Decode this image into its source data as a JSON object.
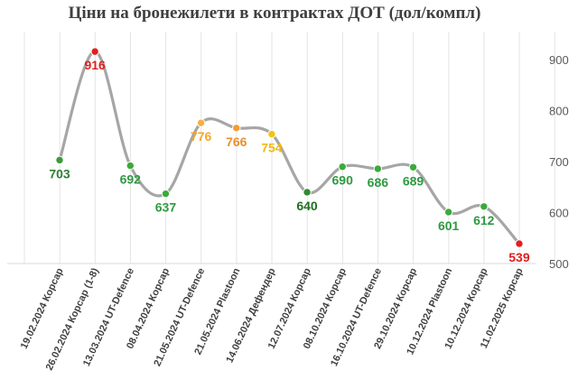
{
  "chart_data": {
    "type": "line",
    "title": "Ціни на бронежилети в контрактах ДОТ (дол/компл)",
    "xlabel": "",
    "ylabel": "",
    "ylim": [
      500,
      950
    ],
    "yticks": [
      500,
      600,
      700,
      800,
      900
    ],
    "grid": "vertical",
    "legend": "none",
    "line_color": "#a6a6a6",
    "categories": [
      "19.02.2024 Корсар",
      "26.02.2024 Корсар (1-8)",
      "13.03.2024 UT-Defence",
      "08.04.2024 Корсар",
      "21.05.2024 UT-Defence",
      "21.05.2024 Plastoon",
      "14.06.2024 Дефендер",
      "12.07.2024 Корсар",
      "08.10.2024 Корсар",
      "16.10.2024 UT-Defence",
      "29.10.2024 Корсар",
      "10.12.2024 Plastoon",
      "10.12.2024 Корсар",
      "11.02.2025 Корсар"
    ],
    "values": [
      703,
      916,
      692,
      637,
      776,
      766,
      754,
      640,
      690,
      686,
      689,
      601,
      612,
      539
    ],
    "point_colors": [
      "#3a9a3a",
      "#e02020",
      "#3aaa3a",
      "#3aaa3a",
      "#f5b041",
      "#f39c33",
      "#f1c40f",
      "#2e8b2e",
      "#3aaa3a",
      "#3aaa3a",
      "#3aaa3a",
      "#3aaa3a",
      "#3aaa3a",
      "#e02020"
    ],
    "label_colors": [
      "#2e7d32",
      "#e02020",
      "#2e9a40",
      "#2e9a40",
      "#f5a623",
      "#e8902a",
      "#f1b90f",
      "#1f6f1f",
      "#2e9a40",
      "#2e9a40",
      "#2e9a40",
      "#2e9a40",
      "#2e9a40",
      "#e02020"
    ]
  }
}
